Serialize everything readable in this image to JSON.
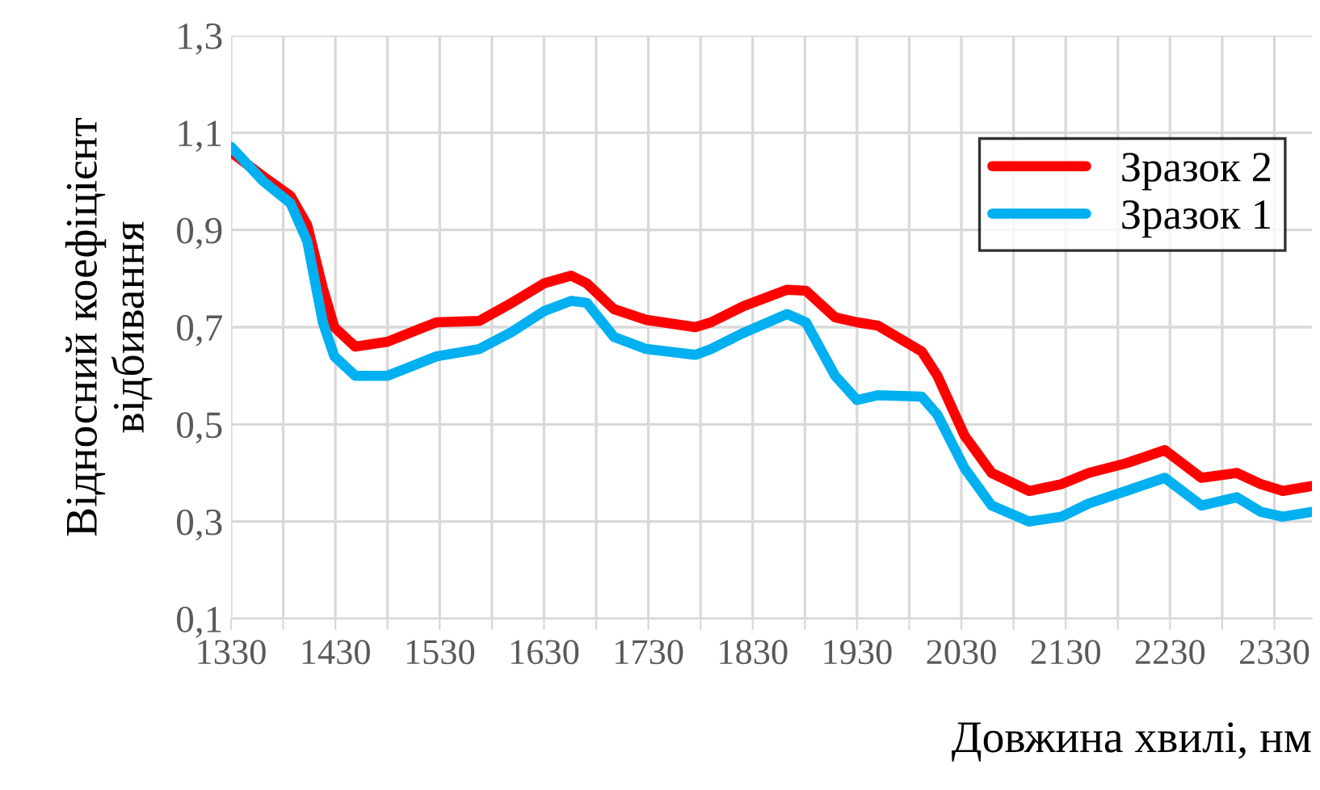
{
  "chart_data": {
    "type": "line",
    "xlabel": "Довжина хвилі, нм",
    "ylabel": "Відносний коефіцієнт\nвідбивання",
    "series": [
      {
        "name": "Зразок 2",
        "color": "#ff0000",
        "x": [
          1330,
          1361,
          1387,
          1403,
          1418,
          1429,
          1449,
          1480,
          1527,
          1568,
          1599,
          1630,
          1656,
          1671,
          1697,
          1728,
          1775,
          1790,
          1821,
          1863,
          1881,
          1909,
          1930,
          1950,
          1992,
          2007,
          2033,
          2059,
          2095,
          2126,
          2152,
          2188,
          2225,
          2260,
          2294,
          2317,
          2338,
          2366
        ],
        "values": [
          1.06,
          1.01,
          0.97,
          0.91,
          0.78,
          0.7,
          0.66,
          0.67,
          0.71,
          0.713,
          0.75,
          0.79,
          0.806,
          0.79,
          0.737,
          0.715,
          0.7,
          0.71,
          0.743,
          0.777,
          0.775,
          0.72,
          0.71,
          0.703,
          0.65,
          0.6,
          0.477,
          0.4,
          0.363,
          0.377,
          0.4,
          0.42,
          0.447,
          0.39,
          0.4,
          0.377,
          0.363,
          0.373
        ]
      },
      {
        "name": "Зразок 1",
        "color": "#00b0f0",
        "x": [
          1330,
          1361,
          1387,
          1403,
          1418,
          1429,
          1449,
          1480,
          1527,
          1568,
          1599,
          1630,
          1656,
          1671,
          1697,
          1728,
          1775,
          1790,
          1821,
          1863,
          1881,
          1909,
          1930,
          1950,
          1992,
          2007,
          2033,
          2059,
          2095,
          2126,
          2152,
          2188,
          2225,
          2260,
          2294,
          2317,
          2338,
          2366
        ],
        "values": [
          1.071,
          1.0,
          0.955,
          0.877,
          0.71,
          0.64,
          0.6,
          0.6,
          0.64,
          0.655,
          0.69,
          0.733,
          0.754,
          0.75,
          0.68,
          0.655,
          0.643,
          0.655,
          0.688,
          0.727,
          0.71,
          0.6,
          0.55,
          0.56,
          0.557,
          0.52,
          0.41,
          0.333,
          0.3,
          0.31,
          0.337,
          0.363,
          0.39,
          0.333,
          0.35,
          0.32,
          0.31,
          0.32
        ]
      }
    ],
    "xlim": [
      1330,
      2366
    ],
    "ylim": [
      0.1,
      1.3
    ],
    "xticks": [
      1330,
      {
        "value": 1380,
        "label": null
      },
      1430,
      {
        "value": 1480,
        "label": null
      },
      1530,
      {
        "value": 1580,
        "label": null
      },
      1630,
      {
        "value": 1680,
        "label": null
      },
      1730,
      {
        "value": 1780,
        "label": null
      },
      1830,
      {
        "value": 1880,
        "label": null
      },
      1930,
      {
        "value": 1980,
        "label": null
      },
      2030,
      {
        "value": 2080,
        "label": null
      },
      2130,
      {
        "value": 2180,
        "label": null
      },
      2230,
      {
        "value": 2280,
        "label": null
      },
      2330
    ],
    "yticks": [
      {
        "value": 0.1,
        "label": "0,1"
      },
      {
        "value": 0.3,
        "label": "0,3"
      },
      {
        "value": 0.5,
        "label": "0,5"
      },
      {
        "value": 0.7,
        "label": "0,7"
      },
      {
        "value": 0.9,
        "label": "0,9"
      },
      {
        "value": 1.1,
        "label": "1,1"
      },
      {
        "value": 1.3,
        "label": "1,3"
      }
    ],
    "grid": true,
    "legend": "top right",
    "marker": "none",
    "line_style": "solid"
  }
}
